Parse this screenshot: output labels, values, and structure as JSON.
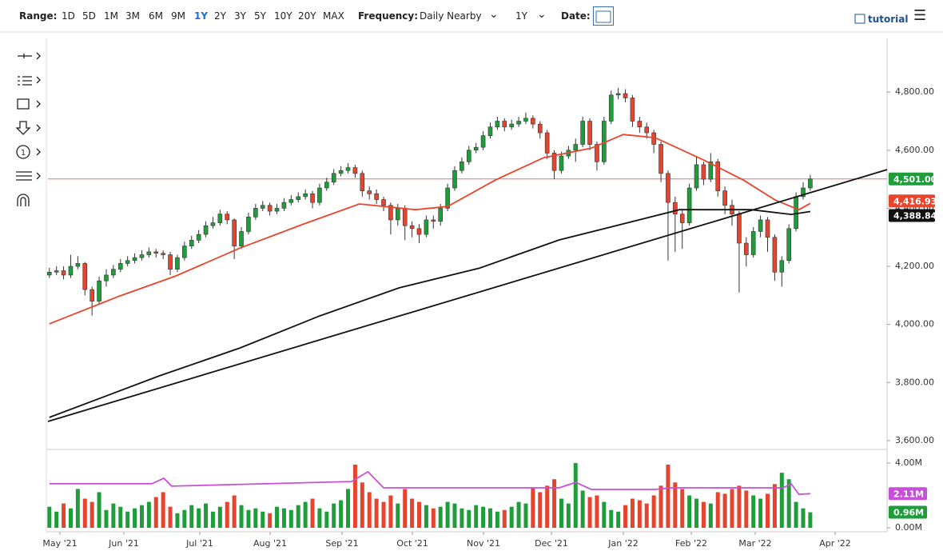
{
  "toolbar": {
    "range_label": "Range:",
    "ranges": [
      "1D",
      "5D",
      "1M",
      "3M",
      "6M",
      "9M",
      "1Y",
      "2Y",
      "3Y",
      "5Y",
      "10Y",
      "20Y",
      "MAX"
    ],
    "active_range": 6,
    "frequency_label": "Frequency:",
    "frequency": "Daily Nearby",
    "period": "1Y",
    "date_label": "Date:",
    "tutorial": "tutorial"
  },
  "chart_data": {
    "type": "candlestick",
    "open": [
      4170,
      4180,
      4185,
      4170,
      4200,
      4210,
      4120,
      4080,
      4150,
      4170,
      4190,
      4210,
      4220,
      4230,
      4240,
      4250,
      4245,
      4240,
      4190,
      4230,
      4270,
      4290,
      4310,
      4340,
      4350,
      4380,
      4360,
      4270,
      4320,
      4370,
      4400,
      4410,
      4390,
      4400,
      4420,
      4430,
      4440,
      4450,
      4420,
      4470,
      4490,
      4520,
      4530,
      4540,
      4520,
      4460,
      4450,
      4430,
      4410,
      4360,
      4400,
      4340,
      4330,
      4310,
      4360,
      4355,
      4400,
      4470,
      4530,
      4560,
      4600,
      4610,
      4650,
      4680,
      4700,
      4680,
      4690,
      4700,
      4710,
      4690,
      4660,
      4590,
      4530,
      4580,
      4600,
      4620,
      4700,
      4620,
      4560,
      4700,
      4790,
      4795,
      4780,
      4700,
      4680,
      4660,
      4620,
      4520,
      4420,
      4380,
      4350,
      4470,
      4550,
      4500,
      4560,
      4460,
      4410,
      4380,
      4280,
      4240,
      4320,
      4360,
      4300,
      4180,
      4220,
      4330,
      4440,
      4470
    ],
    "high": [
      4195,
      4200,
      4200,
      4240,
      4235,
      4215,
      4130,
      4165,
      4190,
      4205,
      4225,
      4235,
      4245,
      4255,
      4265,
      4260,
      4255,
      4250,
      4240,
      4285,
      4305,
      4325,
      4355,
      4370,
      4395,
      4390,
      4365,
      4335,
      4385,
      4415,
      4425,
      4420,
      4415,
      4435,
      4445,
      4455,
      4465,
      4460,
      4485,
      4505,
      4535,
      4545,
      4555,
      4550,
      4530,
      4475,
      4465,
      4440,
      4420,
      4415,
      4410,
      4355,
      4345,
      4375,
      4375,
      4415,
      4485,
      4545,
      4575,
      4615,
      4625,
      4665,
      4695,
      4715,
      4710,
      4705,
      4715,
      4730,
      4720,
      4700,
      4670,
      4600,
      4595,
      4615,
      4640,
      4715,
      4710,
      4630,
      4715,
      4805,
      4815,
      4810,
      4790,
      4715,
      4695,
      4670,
      4630,
      4530,
      4440,
      4395,
      4485,
      4580,
      4560,
      4590,
      4570,
      4475,
      4430,
      4390,
      4300,
      4335,
      4375,
      4370,
      4310,
      4235,
      4345,
      4455,
      4490,
      4515
    ],
    "low": [
      4160,
      4170,
      4155,
      4160,
      4190,
      4100,
      4030,
      4070,
      4130,
      4160,
      4180,
      4200,
      4210,
      4220,
      4230,
      4230,
      4225,
      4170,
      4180,
      4220,
      4260,
      4280,
      4300,
      4330,
      4340,
      4345,
      4225,
      4260,
      4310,
      4360,
      4390,
      4375,
      4380,
      4390,
      4410,
      4420,
      4430,
      4400,
      4410,
      4460,
      4480,
      4510,
      4520,
      4505,
      4440,
      4430,
      4415,
      4390,
      4310,
      4340,
      4290,
      4300,
      4280,
      4300,
      4330,
      4340,
      4390,
      4460,
      4520,
      4550,
      4590,
      4600,
      4640,
      4670,
      4665,
      4670,
      4680,
      4690,
      4675,
      4640,
      4570,
      4500,
      4520,
      4570,
      4560,
      4610,
      4600,
      4530,
      4550,
      4690,
      4775,
      4765,
      4680,
      4660,
      4640,
      4590,
      4490,
      4220,
      4250,
      4260,
      4340,
      4460,
      4480,
      4490,
      4440,
      4380,
      4340,
      4110,
      4200,
      4230,
      4300,
      4250,
      4150,
      4130,
      4210,
      4320,
      4430,
      4460
    ],
    "close": [
      4180,
      4185,
      4170,
      4200,
      4210,
      4120,
      4080,
      4150,
      4170,
      4190,
      4210,
      4220,
      4230,
      4240,
      4250,
      4245,
      4240,
      4190,
      4230,
      4270,
      4290,
      4310,
      4340,
      4350,
      4380,
      4360,
      4270,
      4320,
      4370,
      4400,
      4410,
      4390,
      4400,
      4420,
      4430,
      4440,
      4450,
      4420,
      4470,
      4490,
      4520,
      4530,
      4540,
      4520,
      4460,
      4450,
      4430,
      4410,
      4360,
      4400,
      4340,
      4330,
      4310,
      4360,
      4355,
      4400,
      4470,
      4530,
      4560,
      4600,
      4610,
      4650,
      4680,
      4700,
      4680,
      4690,
      4700,
      4710,
      4690,
      4660,
      4590,
      4530,
      4580,
      4600,
      4620,
      4700,
      4620,
      4560,
      4700,
      4790,
      4795,
      4780,
      4700,
      4680,
      4660,
      4620,
      4520,
      4420,
      4380,
      4350,
      4470,
      4550,
      4500,
      4560,
      4460,
      4410,
      4380,
      4280,
      4240,
      4320,
      4360,
      4300,
      4180,
      4220,
      4330,
      4440,
      4470,
      4501
    ],
    "close_label": "4,501.00",
    "up_color": "#1f9d3b",
    "down_color": "#e5442f",
    "last_line_color": "#e8707a",
    "xlim": [
      -0.2,
      117.8
    ],
    "xticks": [
      {
        "value": 1.49,
        "label": "May '21"
      },
      {
        "value": 10.48,
        "label": "Jun '21"
      },
      {
        "value": 21.15,
        "label": "Jul '21"
      },
      {
        "value": 31.04,
        "label": "Aug '21"
      },
      {
        "value": 41.16,
        "label": "Sep '21"
      },
      {
        "value": 51.05,
        "label": "Oct '21"
      },
      {
        "value": 61.05,
        "label": "Nov '21"
      },
      {
        "value": 70.6,
        "label": "Dec '21"
      },
      {
        "value": 80.72,
        "label": "Jan '22"
      },
      {
        "value": 90.27,
        "label": "Feb '22"
      },
      {
        "value": 99.26,
        "label": "Mar '22"
      },
      {
        "value": 110.5,
        "label": "Apr '22"
      }
    ],
    "ylim": [
      3575,
      4985
    ],
    "yticks": [
      {
        "value": 3600,
        "label": "3,600.00"
      },
      {
        "value": 3800,
        "label": "3,800.00"
      },
      {
        "value": 4000,
        "label": "4,000.00"
      },
      {
        "value": 4200,
        "label": "4,200.00"
      },
      {
        "value": 4400,
        "label": "4,400.00"
      },
      {
        "value": 4600,
        "label": "4,600.00"
      },
      {
        "value": 4800,
        "label": "4,800.00"
      }
    ],
    "lines": [
      {
        "color": "#e8452c",
        "x": [
          0,
          9.9,
          17.8,
          26.8,
          35.8,
          43.6,
          51.5,
          56,
          62.7,
          69.5,
          76.2,
          80.7,
          85.2,
          92,
          97.6,
          102.1,
          105.4,
          107
        ],
        "values": [
          4002,
          4098,
          4167,
          4263,
          4346,
          4415,
          4395,
          4406,
          4497,
          4574,
          4607,
          4654,
          4643,
          4566,
          4497,
          4428,
          4395,
          4416.93
        ],
        "value_label": "4,416.93"
      },
      {
        "color": "#111111",
        "x": [
          0,
          15.5,
          26.8,
          38,
          49.2,
          60.5,
          71.7,
          82.9,
          88.6,
          98.7,
          104.3,
          107
        ],
        "values": [
          3680,
          3823,
          3919,
          4029,
          4126,
          4194,
          4291,
          4360,
          4395,
          4395,
          4379,
          4388.84
        ],
        "value_label": "4,388.84"
      },
      {
        "color": "#111111",
        "x": [
          -0.2,
          117.8
        ],
        "values": [
          3666,
          4533
        ]
      }
    ],
    "volume": {
      "values": [
        1.3,
        1.0,
        1.5,
        1.2,
        2.4,
        1.8,
        1.6,
        2.2,
        1.1,
        1.5,
        1.3,
        1.0,
        1.2,
        1.4,
        1.6,
        1.9,
        2.2,
        1.3,
        0.9,
        1.1,
        1.4,
        1.2,
        1.5,
        1.0,
        1.3,
        1.6,
        2.0,
        1.4,
        1.1,
        1.2,
        1.0,
        0.9,
        1.3,
        1.2,
        1.1,
        1.4,
        1.6,
        1.8,
        1.2,
        1.0,
        1.5,
        1.7,
        2.4,
        3.9,
        2.8,
        2.2,
        1.8,
        1.6,
        2.0,
        1.5,
        2.4,
        1.8,
        1.6,
        1.4,
        1.2,
        1.3,
        1.6,
        1.5,
        1.2,
        1.1,
        1.4,
        1.3,
        1.2,
        1.0,
        1.1,
        1.3,
        1.6,
        1.5,
        2.5,
        2.2,
        2.6,
        3.0,
        1.8,
        1.5,
        4.0,
        2.3,
        1.9,
        2.0,
        1.6,
        1.1,
        1.0,
        1.4,
        1.8,
        1.7,
        1.5,
        2.0,
        2.6,
        3.9,
        2.8,
        2.4,
        2.0,
        1.8,
        1.6,
        1.5,
        2.2,
        2.1,
        2.4,
        2.6,
        2.3,
        2.0,
        1.8,
        2.1,
        2.7,
        3.4,
        3.0,
        1.6,
        1.2,
        0.96
      ],
      "last_label": "0.96M",
      "last_color": "#1f9d3b",
      "ylim": [
        0,
        4.69
      ],
      "yticks": [
        {
          "value": 0,
          "label": "0.00M"
        },
        {
          "value": 4,
          "label": "4.00M"
        }
      ],
      "average": {
        "color": "#c84fd8",
        "x": [
          0,
          14.4,
          16.1,
          17.2,
          42.5,
          44.8,
          47,
          71.7,
          74,
          76.2,
          85.2,
          87.5,
          103.2,
          104.3,
          105.4,
          107
        ],
        "values": [
          2.72,
          2.72,
          3.06,
          2.57,
          2.86,
          3.46,
          2.47,
          2.47,
          2.81,
          2.37,
          2.37,
          2.47,
          2.47,
          2.72,
          2.07,
          2.11
        ],
        "value_label": "2.11M"
      }
    }
  }
}
